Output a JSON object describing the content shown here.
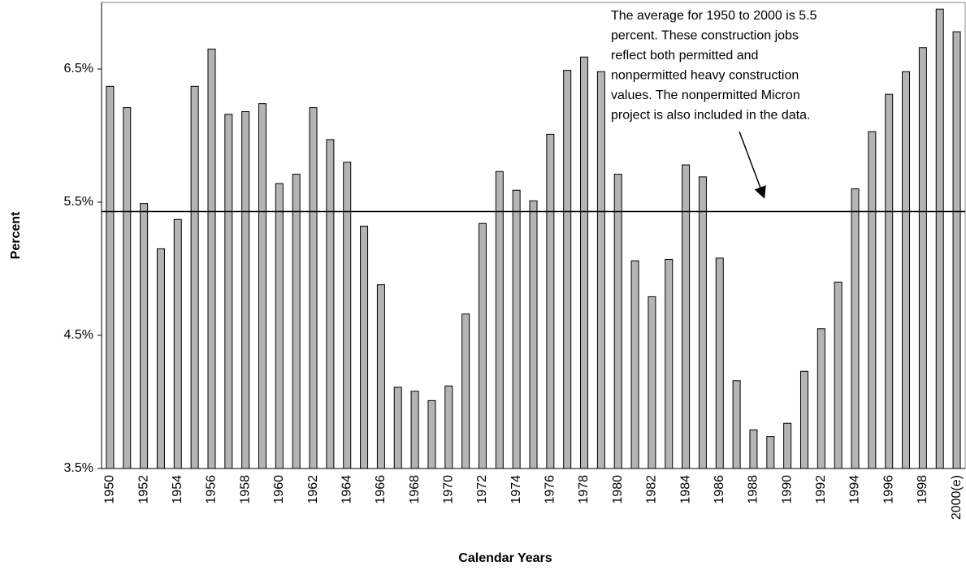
{
  "chart_data": {
    "type": "bar",
    "y_label": "Percent",
    "x_label": "Calendar Years",
    "annotation": [
      "The average for 1950 to 2000 is 5.5",
      "percent. These construction jobs",
      "reflect both permitted and",
      "nonpermitted heavy construction",
      "values. The nonpermitted Micron",
      "project is also included in the data."
    ],
    "categories": [
      "1950",
      null,
      "1952",
      null,
      "1954",
      null,
      "1956",
      null,
      "1958",
      null,
      "1960",
      null,
      "1962",
      null,
      "1964",
      null,
      "1966",
      null,
      "1968",
      null,
      "1970",
      null,
      "1972",
      null,
      "1974",
      null,
      "1976",
      null,
      "1978",
      null,
      "1980",
      null,
      "1982",
      null,
      "1984",
      null,
      "1986",
      null,
      "1988",
      null,
      "1990",
      null,
      "1992",
      null,
      "1994",
      null,
      "1996",
      null,
      "1998",
      null,
      "2000(e)"
    ],
    "values": [
      6.37,
      6.21,
      5.49,
      5.15,
      5.37,
      6.37,
      6.65,
      6.16,
      6.18,
      6.24,
      5.64,
      5.71,
      6.21,
      5.97,
      5.8,
      5.32,
      4.88,
      4.11,
      4.08,
      4.01,
      4.12,
      4.66,
      5.34,
      5.73,
      5.59,
      5.51,
      6.01,
      6.49,
      6.59,
      6.48,
      5.71,
      5.06,
      4.79,
      5.07,
      5.78,
      5.69,
      5.08,
      4.16,
      3.79,
      3.74,
      3.84,
      4.23,
      4.55,
      4.9,
      5.6,
      6.03,
      6.31,
      6.48,
      6.66,
      6.95,
      6.78
    ],
    "color": "#b4b4b4",
    "average_line": 5.43,
    "ylim": [
      3.5,
      7.0
    ],
    "yticks": [
      {
        "value": 3.5,
        "label": "3.5%"
      },
      {
        "value": 4.5,
        "label": "4.5%"
      },
      {
        "value": 5.5,
        "label": "5.5%"
      },
      {
        "value": 6.5,
        "label": "6.5%"
      }
    ],
    "grid": false
  }
}
